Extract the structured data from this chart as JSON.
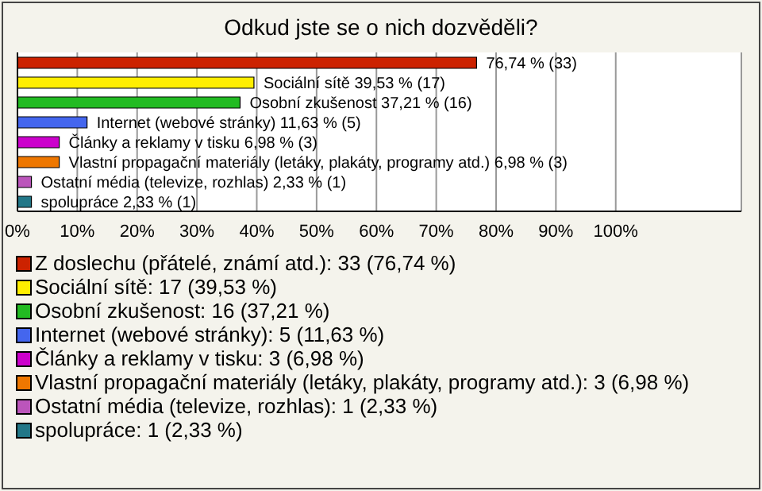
{
  "chart_data": {
    "type": "bar",
    "orientation": "horizontal",
    "stacked": true,
    "title": "Odkud jste se o nich dozvěděli?",
    "categories": [
      null,
      null,
      null,
      null,
      null,
      null,
      null,
      null
    ],
    "series": [
      {
        "name": "Z doslechu (přátelé, známí atd.): 33 (76,74 %)",
        "color": "#cc2200",
        "values": [
          76.74,
          null,
          null,
          null,
          null,
          null,
          null,
          null
        ],
        "value_labels": [
          "76,74 % (33)",
          null,
          null,
          null,
          null,
          null,
          null,
          null
        ]
      },
      {
        "name": "Sociální sítě: 17 (39,53 %)",
        "color": "#ffee00",
        "values": [
          null,
          39.53,
          null,
          null,
          null,
          null,
          null,
          null
        ],
        "value_labels": [
          null,
          "Sociální sítě 39,53 % (17)",
          null,
          null,
          null,
          null,
          null,
          null
        ]
      },
      {
        "name": "Osobní zkušenost: 16 (37,21 %)",
        "color": "#22bb22",
        "values": [
          null,
          null,
          37.21,
          null,
          null,
          null,
          null,
          null
        ],
        "value_labels": [
          null,
          null,
          "Osobní zkušenost 37,21 % (16)",
          null,
          null,
          null,
          null,
          null
        ]
      },
      {
        "name": "Internet (webové stránky): 5 (11,63 %)",
        "color": "#4466ee",
        "values": [
          null,
          null,
          null,
          11.63,
          null,
          null,
          null,
          null
        ],
        "value_labels": [
          null,
          null,
          null,
          "Internet (webové stránky) 11,63 % (5)",
          null,
          null,
          null,
          null
        ]
      },
      {
        "name": "Články a reklamy v tisku: 3 (6,98 %)",
        "color": "#cc00cc",
        "values": [
          null,
          null,
          null,
          null,
          6.98,
          null,
          null,
          null
        ],
        "value_labels": [
          null,
          null,
          null,
          null,
          "Články a reklamy v tisku 6,98 % (3)",
          null,
          null,
          null
        ]
      },
      {
        "name": "Vlastní propagační materiály (letáky, plakáty, programy atd.): 3 (6,98 %)",
        "color": "#ee7700",
        "values": [
          null,
          null,
          null,
          null,
          null,
          6.98,
          null,
          null
        ],
        "value_labels": [
          null,
          null,
          null,
          null,
          null,
          "Vlastní propagační materiály (letáky, plakáty, programy atd.) 6,98 % (3)",
          null,
          null
        ]
      },
      {
        "name": "Ostatní média (televize, rozhlas): 1 (2,33 %)",
        "color": "#bb55bb",
        "values": [
          null,
          null,
          null,
          null,
          null,
          null,
          2.33,
          null
        ],
        "value_labels": [
          null,
          null,
          null,
          null,
          null,
          null,
          "Ostatní média (televize, rozhlas) 2,33 % (1)",
          null
        ]
      },
      {
        "name": "spolupráce: 1 (2,33 %)",
        "color": "#227788",
        "values": [
          null,
          null,
          null,
          null,
          null,
          null,
          null,
          2.33
        ],
        "value_labels": [
          null,
          null,
          null,
          null,
          null,
          null,
          null,
          "spolupráce 2,33 % (1)"
        ]
      }
    ],
    "xlim": [
      0,
      121
    ],
    "xticks": [
      {
        "value": 0,
        "label": "0%"
      },
      {
        "value": 10,
        "label": "10%"
      },
      {
        "value": 20,
        "label": "20%"
      },
      {
        "value": 30,
        "label": "30%"
      },
      {
        "value": 40,
        "label": "40%"
      },
      {
        "value": 50,
        "label": "50%"
      },
      {
        "value": 60,
        "label": "60%"
      },
      {
        "value": 70,
        "label": "70%"
      },
      {
        "value": 80,
        "label": "80%"
      },
      {
        "value": 90,
        "label": "90%"
      },
      {
        "value": 100,
        "label": "100%"
      }
    ],
    "tick_labels": "x",
    "grid": "x",
    "legend": "bottom"
  }
}
